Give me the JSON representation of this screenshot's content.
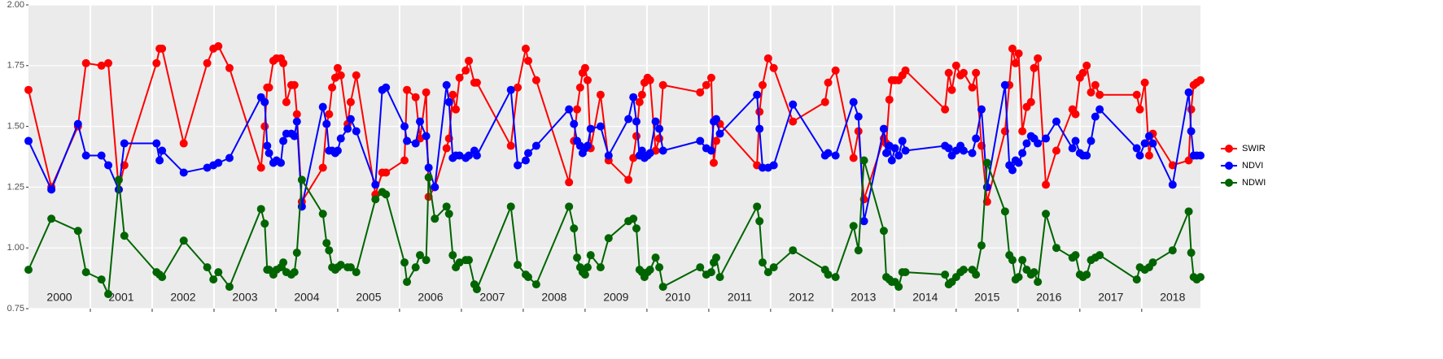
{
  "chart_data": {
    "type": "line",
    "x": [
      2000.0,
      2000.37,
      2000.8,
      2000.93,
      2001.18,
      2001.29,
      2001.46,
      2001.55,
      2002.07,
      2002.12,
      2002.16,
      2002.51,
      2002.89,
      2002.99,
      2003.07,
      2003.25,
      2003.76,
      2003.82,
      2003.86,
      2003.89,
      2003.96,
      2004.01,
      2004.08,
      2004.12,
      2004.17,
      2004.25,
      2004.3,
      2004.34,
      2004.42,
      2004.76,
      2004.82,
      2004.86,
      2004.91,
      2004.96,
      2005.0,
      2005.05,
      2005.16,
      2005.21,
      2005.3,
      2005.61,
      2005.72,
      2005.78,
      2006.08,
      2006.12,
      2006.26,
      2006.33,
      2006.43,
      2006.47,
      2006.57,
      2006.76,
      2006.8,
      2006.86,
      2006.91,
      2006.97,
      2007.07,
      2007.12,
      2007.21,
      2007.25,
      2007.8,
      2007.91,
      2008.04,
      2008.08,
      2008.21,
      2008.74,
      2008.82,
      2008.87,
      2008.92,
      2008.96,
      2009.0,
      2009.04,
      2009.09,
      2009.25,
      2009.38,
      2009.7,
      2009.78,
      2009.83,
      2009.88,
      2009.92,
      2009.96,
      2010.01,
      2010.05,
      2010.14,
      2010.2,
      2010.26,
      2010.86,
      2010.96,
      2011.04,
      2011.08,
      2011.12,
      2011.18,
      2011.78,
      2011.82,
      2011.87,
      2011.96,
      2012.05,
      2012.36,
      2012.88,
      2012.93,
      2013.05,
      2013.34,
      2013.42,
      2013.51,
      2013.83,
      2013.87,
      2013.92,
      2013.96,
      2014.01,
      2014.07,
      2014.13,
      2014.18,
      2014.82,
      2014.88,
      2014.93,
      2015.0,
      2015.07,
      2015.12,
      2015.26,
      2015.32,
      2015.41,
      2015.5,
      2015.79,
      2015.86,
      2015.91,
      2015.96,
      2016.01,
      2016.07,
      2016.14,
      2016.21,
      2016.26,
      2016.32,
      2016.45,
      2016.62,
      2016.88,
      2016.93,
      2017.0,
      2017.05,
      2017.11,
      2017.18,
      2017.25,
      2017.32,
      2017.92,
      2017.97,
      2018.05,
      2018.12,
      2018.18,
      2018.5,
      2018.76,
      2018.8,
      2018.84,
      2018.89,
      2018.95
    ],
    "series": [
      {
        "name": "SWIR",
        "color": "#ff0000",
        "values": [
          1.65,
          1.25,
          1.5,
          1.76,
          1.75,
          1.76,
          1.24,
          1.34,
          1.76,
          1.82,
          1.82,
          1.43,
          1.76,
          1.82,
          1.83,
          1.74,
          1.33,
          1.5,
          1.66,
          1.66,
          1.77,
          1.78,
          1.78,
          1.76,
          1.6,
          1.67,
          1.67,
          1.55,
          1.19,
          1.33,
          1.51,
          1.55,
          1.66,
          1.7,
          1.74,
          1.71,
          1.51,
          1.6,
          1.71,
          1.22,
          1.31,
          1.31,
          1.36,
          1.65,
          1.62,
          1.45,
          1.64,
          1.21,
          1.25,
          1.41,
          1.45,
          1.63,
          1.57,
          1.7,
          1.73,
          1.77,
          1.68,
          1.68,
          1.42,
          1.66,
          1.82,
          1.77,
          1.69,
          1.27,
          1.44,
          1.57,
          1.66,
          1.72,
          1.74,
          1.69,
          1.41,
          1.63,
          1.36,
          1.28,
          1.37,
          1.46,
          1.6,
          1.63,
          1.68,
          1.7,
          1.69,
          1.4,
          1.45,
          1.67,
          1.64,
          1.67,
          1.7,
          1.35,
          1.44,
          1.51,
          1.34,
          1.56,
          1.67,
          1.78,
          1.74,
          1.52,
          1.6,
          1.68,
          1.73,
          1.37,
          1.48,
          1.2,
          1.45,
          1.43,
          1.61,
          1.69,
          1.69,
          1.69,
          1.71,
          1.73,
          1.57,
          1.72,
          1.65,
          1.75,
          1.71,
          1.72,
          1.66,
          1.72,
          1.42,
          1.19,
          1.48,
          1.67,
          1.82,
          1.76,
          1.8,
          1.48,
          1.58,
          1.6,
          1.74,
          1.78,
          1.26,
          1.4,
          1.57,
          1.55,
          1.7,
          1.72,
          1.75,
          1.64,
          1.67,
          1.63,
          1.63,
          1.57,
          1.68,
          1.38,
          1.47,
          1.34,
          1.36,
          1.57,
          1.67,
          1.68,
          1.69
        ]
      },
      {
        "name": "NDVI",
        "color": "#0000ff",
        "values": [
          1.44,
          1.24,
          1.51,
          1.38,
          1.38,
          1.34,
          1.24,
          1.43,
          1.43,
          1.36,
          1.4,
          1.31,
          1.33,
          1.34,
          1.35,
          1.37,
          1.62,
          1.6,
          1.42,
          1.39,
          1.35,
          1.36,
          1.35,
          1.44,
          1.47,
          1.47,
          1.46,
          1.52,
          1.17,
          1.58,
          1.51,
          1.4,
          1.4,
          1.39,
          1.4,
          1.45,
          1.49,
          1.53,
          1.48,
          1.26,
          1.65,
          1.66,
          1.5,
          1.44,
          1.43,
          1.52,
          1.46,
          1.33,
          1.25,
          1.67,
          1.6,
          1.37,
          1.38,
          1.38,
          1.37,
          1.38,
          1.4,
          1.38,
          1.65,
          1.34,
          1.36,
          1.39,
          1.42,
          1.57,
          1.51,
          1.44,
          1.42,
          1.39,
          1.41,
          1.42,
          1.49,
          1.5,
          1.38,
          1.53,
          1.62,
          1.52,
          1.38,
          1.4,
          1.37,
          1.38,
          1.39,
          1.52,
          1.49,
          1.4,
          1.44,
          1.41,
          1.4,
          1.52,
          1.53,
          1.47,
          1.63,
          1.49,
          1.33,
          1.33,
          1.34,
          1.59,
          1.38,
          1.39,
          1.38,
          1.6,
          1.54,
          1.11,
          1.49,
          1.39,
          1.42,
          1.36,
          1.41,
          1.38,
          1.44,
          1.4,
          1.42,
          1.41,
          1.38,
          1.4,
          1.42,
          1.4,
          1.39,
          1.45,
          1.57,
          1.25,
          1.67,
          1.34,
          1.32,
          1.36,
          1.35,
          1.39,
          1.43,
          1.46,
          1.45,
          1.43,
          1.45,
          1.52,
          1.41,
          1.44,
          1.39,
          1.38,
          1.38,
          1.44,
          1.54,
          1.57,
          1.41,
          1.38,
          1.43,
          1.46,
          1.43,
          1.26,
          1.64,
          1.48,
          1.38,
          1.38,
          1.38
        ]
      },
      {
        "name": "NDWI",
        "color": "#006400",
        "values": [
          0.91,
          1.12,
          1.07,
          0.9,
          0.87,
          0.81,
          1.28,
          1.05,
          0.9,
          0.89,
          0.88,
          1.03,
          0.92,
          0.87,
          0.9,
          0.84,
          1.16,
          1.1,
          0.91,
          0.91,
          0.89,
          0.91,
          0.92,
          0.94,
          0.9,
          0.89,
          0.9,
          0.98,
          1.28,
          1.14,
          1.02,
          0.99,
          0.92,
          0.91,
          0.92,
          0.93,
          0.92,
          0.92,
          0.9,
          1.2,
          1.23,
          1.22,
          0.94,
          0.86,
          0.92,
          0.97,
          0.95,
          1.29,
          1.12,
          1.17,
          1.14,
          0.97,
          0.92,
          0.94,
          0.95,
          0.95,
          0.85,
          0.83,
          1.17,
          0.93,
          0.89,
          0.88,
          0.85,
          1.17,
          1.08,
          0.96,
          0.92,
          0.9,
          0.89,
          0.92,
          0.97,
          0.92,
          1.04,
          1.11,
          1.12,
          1.08,
          0.91,
          0.9,
          0.88,
          0.9,
          0.91,
          0.96,
          0.92,
          0.84,
          0.92,
          0.89,
          0.9,
          0.94,
          0.96,
          0.88,
          1.17,
          1.11,
          0.94,
          0.9,
          0.92,
          0.99,
          0.91,
          0.89,
          0.88,
          1.09,
          0.99,
          1.36,
          1.07,
          0.88,
          0.87,
          0.86,
          0.86,
          0.84,
          0.9,
          0.9,
          0.89,
          0.85,
          0.86,
          0.88,
          0.9,
          0.91,
          0.91,
          0.89,
          1.01,
          1.35,
          1.15,
          0.97,
          0.95,
          0.87,
          0.88,
          0.95,
          0.91,
          0.89,
          0.9,
          0.86,
          1.14,
          1.0,
          0.96,
          0.97,
          0.89,
          0.88,
          0.89,
          0.95,
          0.96,
          0.97,
          0.87,
          0.92,
          0.91,
          0.92,
          0.94,
          0.99,
          1.15,
          0.98,
          0.88,
          0.87,
          0.88
        ]
      }
    ],
    "xlim": [
      2000,
      2018.95
    ],
    "xticks": [
      {
        "value": 2000.5,
        "label": "2000"
      },
      {
        "value": 2001.5,
        "label": "2001"
      },
      {
        "value": 2002.5,
        "label": "2002"
      },
      {
        "value": 2003.5,
        "label": "2003"
      },
      {
        "value": 2004.5,
        "label": "2004"
      },
      {
        "value": 2005.5,
        "label": "2005"
      },
      {
        "value": 2006.5,
        "label": "2006"
      },
      {
        "value": 2007.5,
        "label": "2007"
      },
      {
        "value": 2008.5,
        "label": "2008"
      },
      {
        "value": 2009.5,
        "label": "2009"
      },
      {
        "value": 2010.5,
        "label": "2010"
      },
      {
        "value": 2011.5,
        "label": "2011"
      },
      {
        "value": 2012.5,
        "label": "2012"
      },
      {
        "value": 2013.5,
        "label": "2013"
      },
      {
        "value": 2014.5,
        "label": "2014"
      },
      {
        "value": 2015.5,
        "label": "2015"
      },
      {
        "value": 2016.5,
        "label": "2016"
      },
      {
        "value": 2017.5,
        "label": "2017"
      },
      {
        "value": 2018.5,
        "label": "2018"
      }
    ],
    "ylim": [
      0.75,
      2.0
    ],
    "yticks": [
      0.75,
      {
        "value": 1,
        "label": "1.00"
      },
      1.25,
      {
        "value": 1.5,
        "label": "1.50"
      },
      1.75,
      {
        "value": 2,
        "label": "2.00"
      }
    ],
    "grid": true,
    "legend": "right"
  }
}
